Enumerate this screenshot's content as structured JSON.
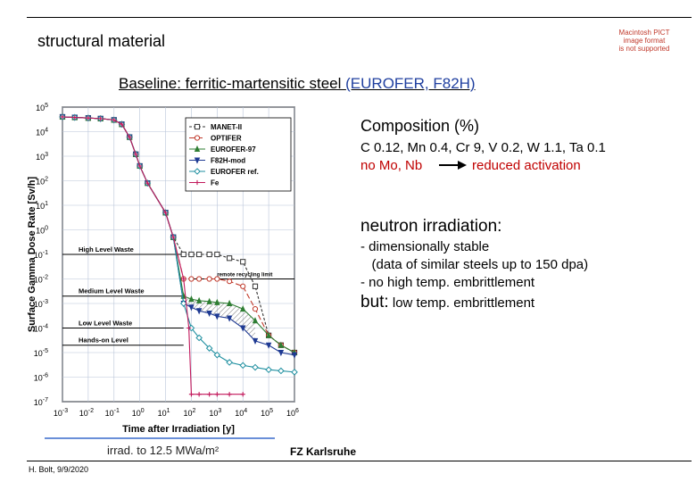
{
  "header": {
    "title": "structural material"
  },
  "placeholder_text": [
    "Macintosh PICT",
    "image format",
    "is not supported"
  ],
  "baseline": {
    "prefix": "Baseline: ferritic-martensitic steel ",
    "highlight": "(EUROFER, F82H)"
  },
  "composition": {
    "heading": "Composition (%)",
    "elements": "C 0.12, Mn 0.4, Cr 9, V 0.2, W 1.1, Ta 0.1",
    "no_mo_nb": "no Mo, Nb",
    "reduced": "reduced activation"
  },
  "irradiation": {
    "heading": "neutron irradiation:",
    "bullet1": "- dimensionally stable",
    "bullet1b": "   (data of similar steels up to 150 dpa)",
    "bullet2": "- no high temp. embrittlement",
    "but_word": "but:",
    "but_text": " low temp. embrittlement"
  },
  "irrad_note": "irrad. to 12.5 MWa/m²",
  "fzk": "FZ Karlsruhe",
  "footer": "H. Bolt, 9/9/2020",
  "colors": {
    "accent_red": "#c00000",
    "blue_text": "#1f3f9f",
    "blue_rule": "#6a8fd8"
  },
  "chart_data": {
    "type": "line",
    "xlabel": "Time after Irradiation [y]",
    "ylabel": "Surface Gamma Dose Rate [Sv/h]",
    "x_log": true,
    "y_log": true,
    "xlim": [
      0.001,
      1000000
    ],
    "ylim": [
      1e-07,
      100000
    ],
    "x_ticks": [
      {
        "v": 0.001,
        "m": "10",
        "e": "-3"
      },
      {
        "v": 0.01,
        "m": "10",
        "e": "-2"
      },
      {
        "v": 0.1,
        "m": "10",
        "e": "-1"
      },
      {
        "v": 1,
        "m": "10",
        "e": "0"
      },
      {
        "v": 10,
        "m": "10",
        "e": "1"
      },
      {
        "v": 100,
        "m": "10",
        "e": "2"
      },
      {
        "v": 1000,
        "m": "10",
        "e": "3"
      },
      {
        "v": 10000,
        "m": "10",
        "e": "4"
      },
      {
        "v": 100000,
        "m": "10",
        "e": "5"
      },
      {
        "v": 1000000,
        "m": "10",
        "e": "6"
      }
    ],
    "y_ticks": [
      {
        "v": 100000,
        "m": "10",
        "e": "5"
      },
      {
        "v": 10000,
        "m": "10",
        "e": "4"
      },
      {
        "v": 1000,
        "m": "10",
        "e": "3"
      },
      {
        "v": 100,
        "m": "10",
        "e": "2"
      },
      {
        "v": 10,
        "m": "10",
        "e": "1"
      },
      {
        "v": 1,
        "m": "10",
        "e": "0"
      },
      {
        "v": 0.1,
        "m": "10",
        "e": "-1"
      },
      {
        "v": 0.01,
        "m": "10",
        "e": "-2"
      },
      {
        "v": 0.001,
        "m": "10",
        "e": "-3"
      },
      {
        "v": 0.0001,
        "m": "10",
        "e": "-4"
      },
      {
        "v": 1e-05,
        "m": "10",
        "e": "-5"
      },
      {
        "v": 1e-06,
        "m": "10",
        "e": "-6"
      },
      {
        "v": 1e-07,
        "m": "10",
        "e": "-7"
      }
    ],
    "levels": [
      {
        "label": "High Level Waste",
        "y": 0.1
      },
      {
        "label": "Medium Level Waste",
        "y": 0.002
      },
      {
        "label": "Low Level Waste",
        "y": 0.0001
      },
      {
        "label": "Hands-on Level",
        "y": 2e-05
      }
    ],
    "remote_label": "remote recycling limit",
    "remote_limit": 0.01,
    "legend_position": "top-right",
    "series": [
      {
        "name": "MANET-II",
        "color": "#333333",
        "marker": "square",
        "dash": "3,2",
        "x": [
          0.001,
          0.003,
          0.01,
          0.03,
          0.1,
          0.2,
          0.4,
          0.7,
          1,
          2,
          10,
          20,
          50,
          100,
          200,
          500,
          1000,
          3000,
          10000,
          30000,
          100000,
          300000,
          1000000
        ],
        "y": [
          40000,
          38000,
          36000,
          34000,
          30000,
          20000,
          6000,
          1200,
          400,
          80,
          5,
          0.5,
          0.1,
          0.1,
          0.1,
          0.1,
          0.1,
          0.07,
          0.05,
          0.005,
          5e-05,
          2e-05,
          1e-05
        ]
      },
      {
        "name": "OPTIFER",
        "color": "#c0392b",
        "marker": "circle",
        "dash": "6,3",
        "x": [
          0.001,
          0.003,
          0.01,
          0.03,
          0.1,
          0.2,
          0.4,
          0.7,
          1,
          2,
          10,
          20,
          50,
          100,
          200,
          500,
          1000,
          3000,
          10000,
          30000,
          100000,
          300000,
          1000000
        ],
        "y": [
          40000,
          38000,
          36000,
          34000,
          30000,
          20000,
          6000,
          1200,
          400,
          80,
          5,
          0.5,
          0.01,
          0.01,
          0.01,
          0.01,
          0.01,
          0.008,
          0.005,
          0.0006,
          5e-05,
          2e-05,
          1e-05
        ]
      },
      {
        "name": "EUROFER-97",
        "color": "#2e7d32",
        "marker": "triangle",
        "dash": "",
        "x": [
          0.001,
          0.003,
          0.01,
          0.03,
          0.1,
          0.2,
          0.4,
          0.7,
          1,
          2,
          10,
          20,
          50,
          100,
          200,
          500,
          1000,
          3000,
          10000,
          30000,
          100000,
          300000,
          1000000
        ],
        "y": [
          40000,
          38000,
          36000,
          34000,
          30000,
          20000,
          6000,
          1200,
          400,
          80,
          5,
          0.5,
          0.002,
          0.0015,
          0.0013,
          0.0012,
          0.0011,
          0.001,
          0.0006,
          0.0002,
          5e-05,
          2e-05,
          1e-05
        ]
      },
      {
        "name": "F82H-mod",
        "color": "#1f3a93",
        "marker": "triangle-down",
        "dash": "",
        "x": [
          0.001,
          0.003,
          0.01,
          0.03,
          0.1,
          0.2,
          0.4,
          0.7,
          1,
          2,
          10,
          20,
          50,
          100,
          200,
          500,
          1000,
          3000,
          10000,
          30000,
          100000,
          300000,
          1000000
        ],
        "y": [
          40000,
          38000,
          36000,
          34000,
          30000,
          20000,
          6000,
          1200,
          400,
          80,
          5,
          0.5,
          0.001,
          0.0007,
          0.0005,
          0.0004,
          0.0003,
          0.00025,
          0.0001,
          3e-05,
          2e-05,
          1e-05,
          8e-06
        ]
      },
      {
        "name": "EUROFER ref.",
        "color": "#1f8fa0",
        "marker": "diamond",
        "dash": "",
        "x": [
          0.001,
          0.003,
          0.01,
          0.03,
          0.1,
          0.2,
          0.4,
          0.7,
          1,
          2,
          10,
          20,
          50,
          100,
          200,
          500,
          1000,
          3000,
          10000,
          30000,
          100000,
          300000,
          1000000
        ],
        "y": [
          40000,
          38000,
          36000,
          34000,
          30000,
          20000,
          6000,
          1200,
          400,
          80,
          5,
          0.5,
          0.001,
          0.0001,
          4e-05,
          1.5e-05,
          8e-06,
          4e-06,
          3e-06,
          2.5e-06,
          2e-06,
          1.8e-06,
          1.6e-06
        ]
      },
      {
        "name": "Fe",
        "color": "#c2185b",
        "marker": "plus",
        "dash": "",
        "x": [
          0.001,
          0.003,
          0.01,
          0.03,
          0.1,
          0.2,
          0.4,
          0.7,
          1,
          2,
          10,
          20,
          50,
          80,
          100,
          200,
          500,
          1000,
          3000,
          10000
        ],
        "y": [
          40000,
          38000,
          36000,
          34000,
          30000,
          20000,
          6000,
          1200,
          400,
          80,
          5,
          0.5,
          0.01,
          0.0001,
          2e-07,
          2e-07,
          2e-07,
          2e-07,
          2e-07,
          2e-07
        ]
      }
    ]
  }
}
